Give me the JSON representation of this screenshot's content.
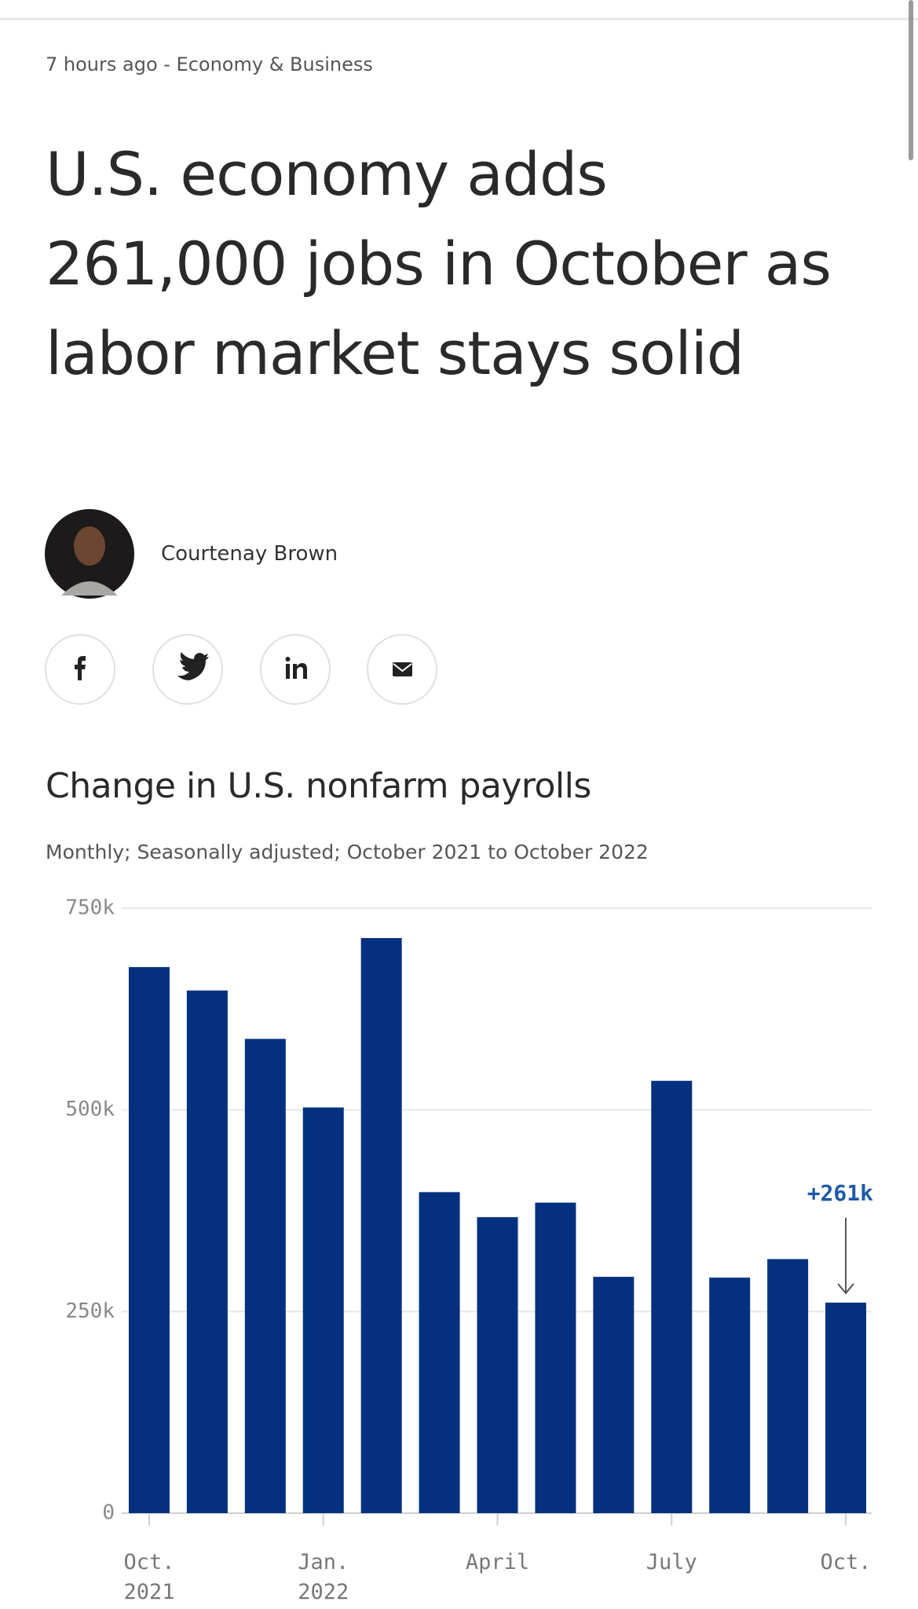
{
  "header": {
    "meta": "7 hours ago - Economy & Business",
    "headline": "U.S. economy adds 261,000 jobs in October as labor market stays solid",
    "author": "Courtenay Brown"
  },
  "chart_data": {
    "type": "bar",
    "title": "Change in U.S. nonfarm payrolls",
    "subtitle": "Monthly; Seasonally adjusted; October 2021 to October 2022",
    "categories": [
      "Oct. 2021",
      null,
      null,
      "Jan. 2022",
      null,
      null,
      "April",
      null,
      null,
      "July",
      null,
      null,
      "Oct."
    ],
    "values": [
      677000,
      648000,
      588000,
      503000,
      713000,
      398000,
      367000,
      385000,
      293000,
      536000,
      292000,
      315000,
      261000
    ],
    "color": "#03317f",
    "annotation": {
      "text": "+261k",
      "index": 12,
      "color": "#1f5aa6"
    },
    "ylim": [
      0,
      750000
    ],
    "yticks": [
      0,
      {
        "value": 250000,
        "label": "250k"
      },
      {
        "value": 500000,
        "label": "500k"
      },
      {
        "value": 750000,
        "label": "750k"
      }
    ],
    "grid": true
  }
}
